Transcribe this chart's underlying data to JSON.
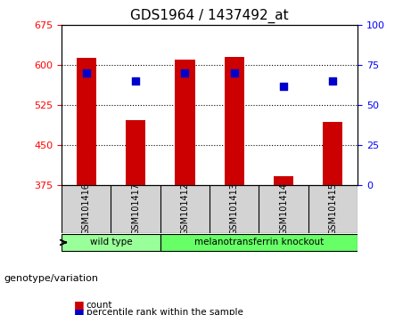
{
  "title": "GDS1964 / 1437492_at",
  "categories": [
    "GSM101416",
    "GSM101417",
    "GSM101412",
    "GSM101413",
    "GSM101414",
    "GSM101415"
  ],
  "bar_values": [
    614,
    497,
    610,
    615,
    392,
    493
  ],
  "percentile_values": [
    70,
    65,
    70,
    70,
    62,
    65
  ],
  "ylim_left": [
    375,
    675
  ],
  "ylim_right": [
    0,
    100
  ],
  "yticks_left": [
    375,
    450,
    525,
    600,
    675
  ],
  "yticks_right": [
    0,
    25,
    50,
    75,
    100
  ],
  "bar_color": "#cc0000",
  "dot_color": "#0000cc",
  "background_color": "#ffffff",
  "grid_color": "#000000",
  "groups": [
    {
      "label": "wild type",
      "indices": [
        0,
        1
      ],
      "color": "#99ff99"
    },
    {
      "label": "melanotransferrin knockout",
      "indices": [
        2,
        3,
        4,
        5
      ],
      "color": "#66ff66"
    }
  ],
  "genotype_label": "genotype/variation",
  "legend_items": [
    {
      "label": "count",
      "color": "#cc0000"
    },
    {
      "label": "percentile rank within the sample",
      "color": "#0000cc"
    }
  ],
  "tick_label_area_color": "#d3d3d3"
}
